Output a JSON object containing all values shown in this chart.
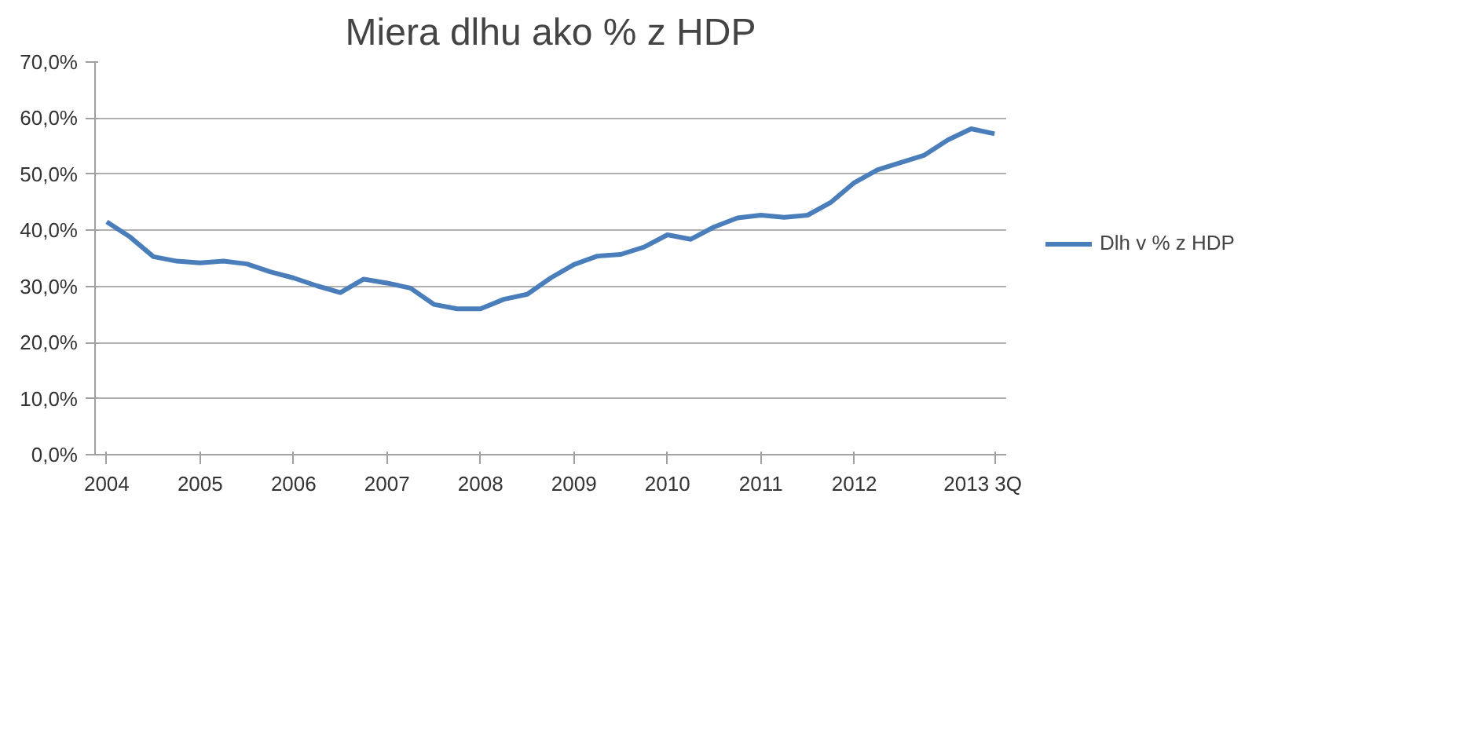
{
  "chart_data": {
    "type": "line",
    "title": "Miera dlhu ako % z HDP",
    "categories": [
      "2004",
      null,
      null,
      null,
      "2005",
      null,
      null,
      null,
      "2006",
      null,
      null,
      null,
      "2007",
      null,
      null,
      null,
      "2008",
      null,
      null,
      null,
      "2009",
      null,
      null,
      null,
      "2010",
      null,
      null,
      null,
      "2011",
      null,
      null,
      null,
      "2012",
      null,
      null,
      null,
      null,
      null,
      "2013 3Q"
    ],
    "series": [
      {
        "name": "Dlh v % z HDP",
        "color": "#4a7ebb",
        "values": [
          41.5,
          38.8,
          35.3,
          34.5,
          34.2,
          34.5,
          34.0,
          32.6,
          31.5,
          30.1,
          28.9,
          31.3,
          30.6,
          29.7,
          26.8,
          26.0,
          26.0,
          27.7,
          28.6,
          31.5,
          33.9,
          35.4,
          35.7,
          37.0,
          39.2,
          38.4,
          40.6,
          42.2,
          42.7,
          42.3,
          42.7,
          45.0,
          48.5,
          50.8,
          52.1,
          53.4,
          56.1,
          58.1,
          57.2
        ]
      }
    ],
    "ylim": [
      0,
      70
    ],
    "yticks": [
      {
        "value": 0,
        "label": "0,0%"
      },
      {
        "value": 10,
        "label": "10,0%"
      },
      {
        "value": 20,
        "label": "20,0%"
      },
      {
        "value": 30,
        "label": "30,0%"
      },
      {
        "value": 40,
        "label": "40,0%"
      },
      {
        "value": 50,
        "label": "50,0%"
      },
      {
        "value": 60,
        "label": "60,0%"
      },
      {
        "value": 70,
        "label": "70,0%"
      }
    ],
    "grid": "y",
    "legend": "right",
    "line_style": "solid",
    "marker": "none"
  }
}
